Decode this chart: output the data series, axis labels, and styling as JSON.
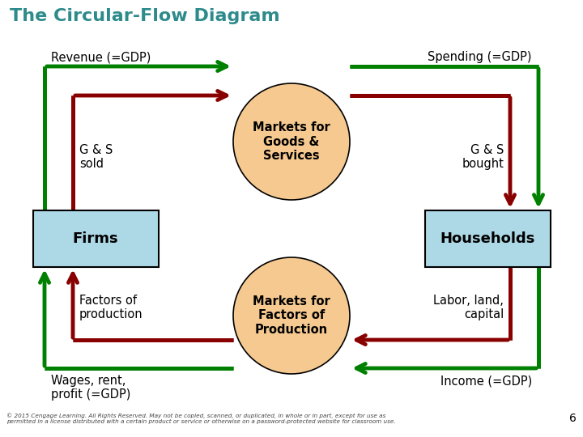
{
  "title": "The Circular-Flow Diagram",
  "title_color": "#2E8B8B",
  "bg_color": "#FFFFFF",
  "box_color": "#ADD8E6",
  "box_edge_color": "#000000",
  "circle_color": "#F5C990",
  "circle_edge_color": "#000000",
  "firms_label": "Firms",
  "households_label": "Households",
  "market_gs_label": "Markets for\nGoods &\nServices",
  "market_fp_label": "Markets for\nFactors of\nProduction",
  "revenue_label": "Revenue (=GDP)",
  "spending_label": "Spending (=GDP)",
  "gs_sold_label": "G & S\nsold",
  "gs_bought_label": "G & S\nbought",
  "factors_label": "Factors of\nproduction",
  "labor_label": "Labor, land,\ncapital",
  "wages_label": "Wages, rent,\nprofit (=GDP)",
  "income_label": "Income (=GDP)",
  "green_color": "#008000",
  "red_color": "#880000",
  "footnote": "© 2015 Cengage Learning. All Rights Reserved. May not be copied, scanned, or duplicated, in whole or in part, except for use as\npermitted in a license distributed with a certain product or service or otherwise on a password-protected website for classroom use.",
  "page_number": "6"
}
